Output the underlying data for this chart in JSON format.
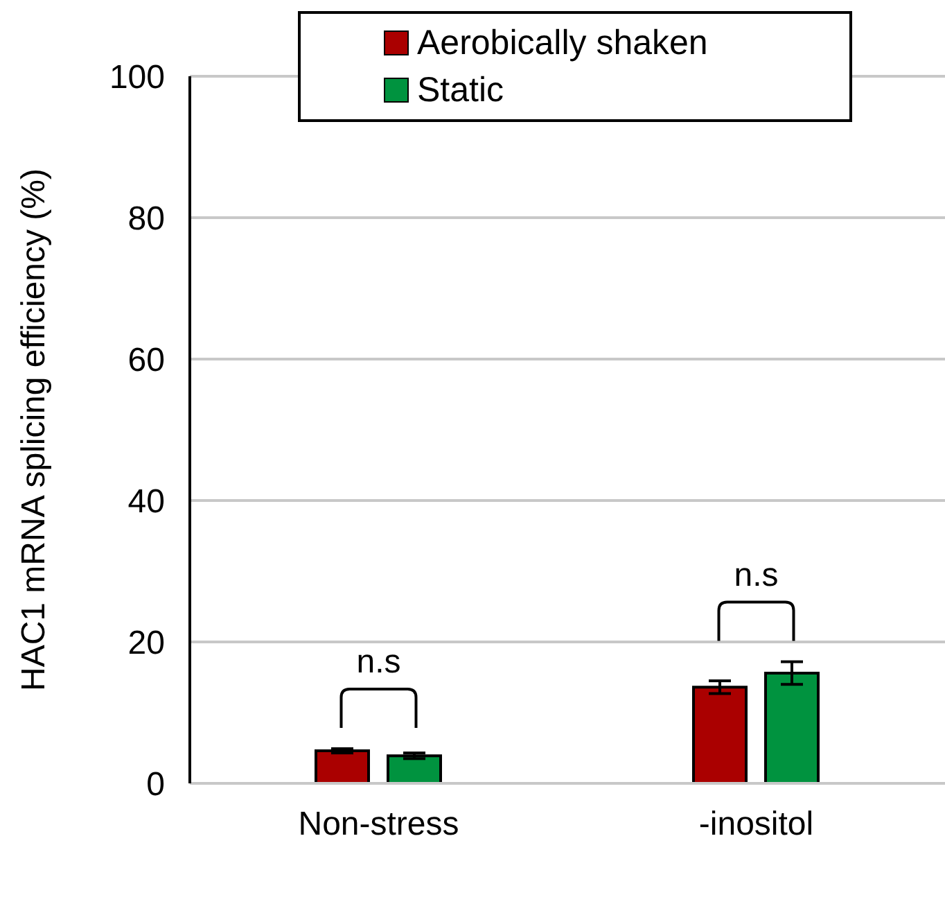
{
  "chart_data": {
    "type": "bar",
    "ylabel": "HAC1 mRNA splicing efficiency (%)",
    "categories": [
      "Non-stress",
      "-inositol"
    ],
    "series": [
      {
        "name": "Aerobically shaken",
        "color": "#aa0000",
        "values": [
          4.6,
          13.6
        ],
        "errors": [
          0.3,
          0.9
        ]
      },
      {
        "name": "Static",
        "color": "#00933f",
        "values": [
          3.9,
          15.6
        ],
        "errors": [
          0.4,
          1.6
        ]
      }
    ],
    "ylim": [
      0,
      100
    ],
    "yticks": [
      0,
      20,
      40,
      60,
      80,
      100
    ],
    "grid": "y",
    "legend": "top",
    "annotations": [
      "n.s",
      "n.s"
    ]
  }
}
